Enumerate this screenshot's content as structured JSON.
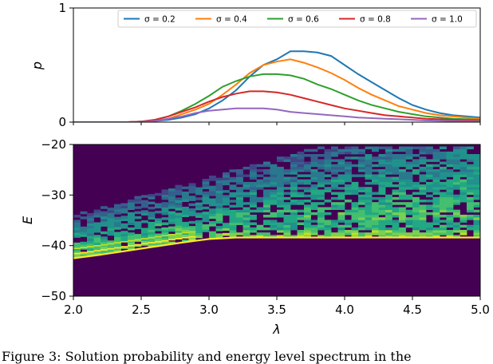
{
  "chart_data": [
    {
      "type": "line",
      "title": "",
      "xlabel": "",
      "ylabel": "p",
      "xlim": [
        2.0,
        5.0
      ],
      "ylim": [
        0,
        1
      ],
      "yticks": [
        "0",
        "1"
      ],
      "grid": false,
      "legend_position": "top",
      "x": [
        2.0,
        2.1,
        2.2,
        2.3,
        2.4,
        2.5,
        2.6,
        2.7,
        2.8,
        2.9,
        3.0,
        3.1,
        3.2,
        3.3,
        3.4,
        3.5,
        3.6,
        3.7,
        3.8,
        3.9,
        4.0,
        4.1,
        4.2,
        4.3,
        4.4,
        4.5,
        4.6,
        4.7,
        4.8,
        4.9,
        5.0
      ],
      "series": [
        {
          "name": "σ = 0.2",
          "color": "#1f77b4",
          "values": [
            0,
            0,
            0,
            0,
            0,
            0.005,
            0.01,
            0.02,
            0.04,
            0.07,
            0.12,
            0.19,
            0.28,
            0.4,
            0.5,
            0.55,
            0.62,
            0.62,
            0.61,
            0.58,
            0.5,
            0.42,
            0.35,
            0.28,
            0.21,
            0.15,
            0.11,
            0.08,
            0.06,
            0.05,
            0.04
          ]
        },
        {
          "name": "σ = 0.4",
          "color": "#ff7f0e",
          "values": [
            0,
            0,
            0,
            0,
            0,
            0.005,
            0.01,
            0.03,
            0.07,
            0.11,
            0.16,
            0.24,
            0.33,
            0.43,
            0.5,
            0.53,
            0.55,
            0.52,
            0.48,
            0.43,
            0.37,
            0.3,
            0.24,
            0.19,
            0.14,
            0.11,
            0.08,
            0.06,
            0.05,
            0.04,
            0.03
          ]
        },
        {
          "name": "σ = 0.6",
          "color": "#2ca02c",
          "values": [
            0,
            0,
            0,
            0,
            0,
            0.005,
            0.02,
            0.05,
            0.1,
            0.16,
            0.23,
            0.31,
            0.36,
            0.4,
            0.42,
            0.42,
            0.41,
            0.38,
            0.33,
            0.29,
            0.24,
            0.19,
            0.15,
            0.12,
            0.09,
            0.07,
            0.05,
            0.04,
            0.03,
            0.025,
            0.02
          ]
        },
        {
          "name": "σ = 0.8",
          "color": "#d62728",
          "values": [
            0,
            0,
            0,
            0,
            0,
            0.005,
            0.02,
            0.05,
            0.09,
            0.13,
            0.18,
            0.22,
            0.25,
            0.27,
            0.27,
            0.26,
            0.24,
            0.21,
            0.18,
            0.15,
            0.12,
            0.1,
            0.08,
            0.06,
            0.05,
            0.04,
            0.03,
            0.025,
            0.02,
            0.015,
            0.01
          ]
        },
        {
          "name": "σ = 1.0",
          "color": "#9467bd",
          "values": [
            0,
            0,
            0,
            0,
            0,
            0.003,
            0.01,
            0.03,
            0.05,
            0.08,
            0.1,
            0.11,
            0.12,
            0.12,
            0.12,
            0.11,
            0.09,
            0.08,
            0.07,
            0.06,
            0.05,
            0.04,
            0.035,
            0.03,
            0.025,
            0.02,
            0.015,
            0.012,
            0.01,
            0.008,
            0.005
          ]
        }
      ]
    },
    {
      "type": "heatmap",
      "title": "",
      "xlabel": "λ",
      "ylabel": "E",
      "xlim": [
        2.0,
        5.0
      ],
      "ylim": [
        -50,
        -20
      ],
      "xticks": [
        "2.0",
        "2.5",
        "3.0",
        "3.5",
        "4.0",
        "4.5",
        "5.0"
      ],
      "yticks": [
        "−20",
        "−30",
        "−40",
        "−50"
      ],
      "colormap": "viridis",
      "background_color": "#440154",
      "ground_state_line": [
        {
          "x": 2.0,
          "E": -42.5
        },
        {
          "x": 2.2,
          "E": -41.8
        },
        {
          "x": 2.4,
          "E": -41.0
        },
        {
          "x": 2.6,
          "E": -40.2
        },
        {
          "x": 2.8,
          "E": -39.4
        },
        {
          "x": 3.0,
          "E": -38.7
        },
        {
          "x": 3.2,
          "E": -38.4
        },
        {
          "x": 5.0,
          "E": -38.4
        }
      ]
    }
  ],
  "caption": "Figure 3: Solution probability and energy level spectrum in the"
}
